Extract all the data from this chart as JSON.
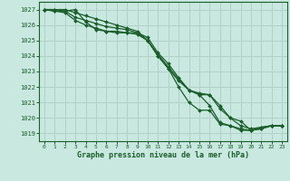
{
  "title": "Graphe pression niveau de la mer (hPa)",
  "background_color": "#c8e8e0",
  "grid_color": "#b0d0c8",
  "line_color": "#1a5e2a",
  "xlim": [
    -0.5,
    23.5
  ],
  "ylim": [
    1018.5,
    1027.5
  ],
  "yticks": [
    1019,
    1020,
    1021,
    1022,
    1023,
    1024,
    1025,
    1026,
    1027
  ],
  "xticks": [
    0,
    1,
    2,
    3,
    4,
    5,
    6,
    7,
    8,
    9,
    10,
    11,
    12,
    13,
    14,
    15,
    16,
    17,
    18,
    19,
    20,
    21,
    22,
    23
  ],
  "series": [
    [
      1027.0,
      1026.9,
      1026.9,
      1027.0,
      1026.2,
      1025.7,
      1025.6,
      1025.6,
      1025.5,
      1025.4,
      1025.0,
      1024.0,
      1023.2,
      1022.0,
      1021.0,
      1020.5,
      1020.5,
      1019.6,
      1019.5,
      1019.2,
      1019.2,
      1019.4,
      1019.5,
      1019.5
    ],
    [
      1027.0,
      1026.9,
      1026.8,
      1026.3,
      1026.0,
      1025.8,
      1025.6,
      1025.5,
      1025.5,
      1025.5,
      1025.2,
      1024.2,
      1023.5,
      1022.6,
      1021.8,
      1021.5,
      1021.5,
      1020.8,
      1020.0,
      1019.5,
      1019.3,
      1019.4,
      1019.5,
      1019.5
    ],
    [
      1027.0,
      1027.0,
      1027.0,
      1026.8,
      1026.6,
      1026.4,
      1026.2,
      1026.0,
      1025.8,
      1025.6,
      1025.0,
      1024.0,
      1023.2,
      1022.4,
      1021.8,
      1021.6,
      1021.5,
      1020.6,
      1020.0,
      1019.8,
      1019.2,
      1019.3,
      1019.5,
      1019.5
    ],
    [
      1027.0,
      1027.0,
      1026.9,
      1026.5,
      1026.3,
      1026.1,
      1025.9,
      1025.8,
      1025.7,
      1025.5,
      1025.0,
      1024.1,
      1023.3,
      1022.5,
      1021.8,
      1021.5,
      1020.8,
      1019.7,
      1019.5,
      1019.3,
      1019.2,
      1019.3,
      1019.5,
      1019.5
    ]
  ]
}
